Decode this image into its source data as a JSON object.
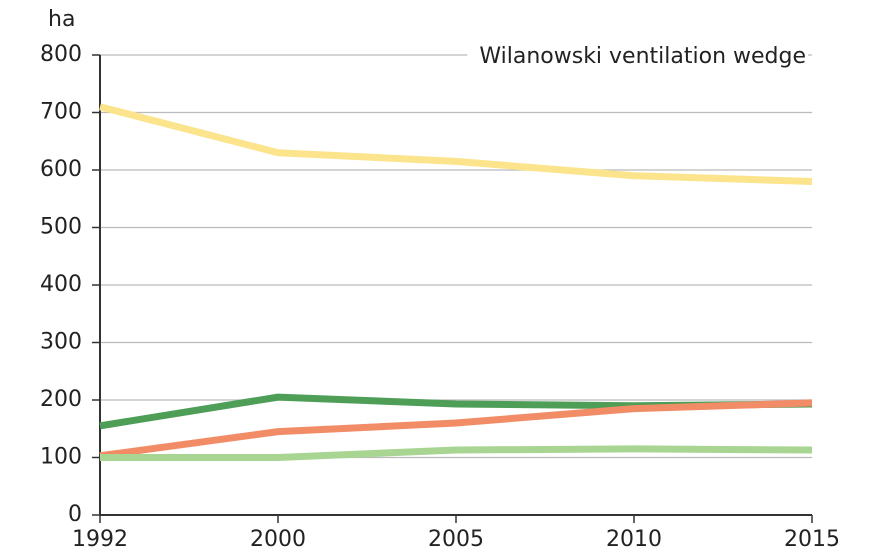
{
  "chart_data": {
    "type": "line",
    "title": "Wilanowski ventilation wedge",
    "y_label": "ha",
    "categories": [
      "1992",
      "2000",
      "2005",
      "2010",
      "2015"
    ],
    "series": [
      {
        "color": "#fbe48c",
        "values": [
          710,
          630,
          615,
          590,
          580
        ]
      },
      {
        "color": "#4e9e58",
        "values": [
          155,
          205,
          193,
          190,
          193
        ]
      },
      {
        "color": "#f28c66",
        "values": [
          103,
          145,
          160,
          185,
          195
        ]
      },
      {
        "color": "#a9d593",
        "values": [
          100,
          100,
          113,
          115,
          113
        ]
      }
    ],
    "ylim": [
      0,
      800
    ],
    "yticks": [
      0,
      100,
      200,
      300,
      400,
      500,
      600,
      700,
      800
    ],
    "grid": true
  }
}
